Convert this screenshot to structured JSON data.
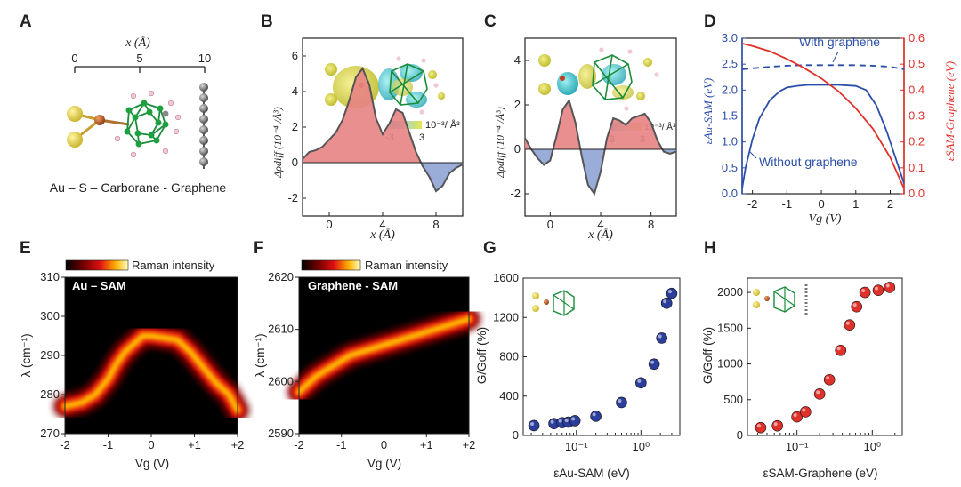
{
  "panels": {
    "A": {
      "label": "A",
      "axis_title": "x (Å)",
      "ticks": [
        "0",
        "5",
        "10"
      ],
      "caption": "Au – S – Carborane - Graphene"
    },
    "B": {
      "label": "B",
      "ylabel": "Δρdiff (10⁻⁴ /Å³)",
      "xlabel": "x (Å)",
      "colorbar": {
        "min": "-3",
        "max": "3",
        "unit": "10⁻³/ Å³"
      }
    },
    "C": {
      "label": "C",
      "ylabel": "Δρdiff (10⁻⁴ /Å³)",
      "xlabel": "x (Å)",
      "colorbar": {
        "min": "-3",
        "max": "3",
        "unit": "10⁻³/ Å³"
      }
    },
    "D": {
      "label": "D",
      "xlabel": "Vg (V)",
      "ylabel_left": "εAu-SAM (eV)",
      "ylabel_right": "εSAM-Graphene (eV)",
      "annot_with": "With graphene",
      "annot_without": "Without graphene"
    },
    "E": {
      "label": "E",
      "colorbar_label": "Raman intensity",
      "title": "Au – SAM",
      "ylabel": "λ (cm⁻¹)",
      "xlabel": "Vg (V)"
    },
    "F": {
      "label": "F",
      "colorbar_label": "Raman intensity",
      "title": "Graphene - SAM",
      "ylabel": "λ (cm⁻¹)",
      "xlabel": "Vg (V)"
    },
    "G": {
      "label": "G",
      "ylabel": "G/Goff (%)",
      "xlabel": "εAu-SAM (eV)"
    },
    "H": {
      "label": "H",
      "ylabel": "G/Goff (%)",
      "xlabel": "εSAM-Graphene (eV)"
    }
  },
  "chart_data": [
    {
      "id": "B",
      "type": "area",
      "x": [
        -2,
        -1.5,
        -1,
        -0.5,
        0,
        0.5,
        1,
        1.5,
        2,
        2.5,
        3,
        3.5,
        4,
        4.5,
        5,
        5.5,
        6,
        6.5,
        7,
        7.5,
        8,
        8.5,
        9,
        9.5,
        10
      ],
      "y": [
        0.2,
        0.6,
        0.7,
        0.9,
        1.3,
        1.7,
        2.4,
        3.5,
        4.8,
        5.3,
        4.4,
        2.5,
        1.6,
        2.2,
        3.0,
        2.8,
        1.7,
        0.6,
        -0.2,
        -0.8,
        -1.6,
        -1.3,
        -0.6,
        -0.3,
        -0.1
      ],
      "xlim": [
        -2,
        10
      ],
      "ylim": [
        -3,
        7
      ],
      "xticks": [
        0,
        4,
        8
      ],
      "yticks": [
        -2,
        0,
        2,
        4,
        6
      ],
      "pos_color": "#e88383",
      "neg_color": "#8fa3d4"
    },
    {
      "id": "C",
      "type": "area",
      "x": [
        -2,
        -1.5,
        -1,
        -0.5,
        0,
        0.5,
        1,
        1.5,
        2,
        2.5,
        3,
        3.5,
        4,
        4.5,
        5,
        5.5,
        6,
        6.5,
        7,
        7.5,
        8,
        8.5,
        9,
        9.5,
        10
      ],
      "y": [
        0.5,
        0.0,
        -0.4,
        -0.7,
        -0.5,
        0.6,
        1.8,
        2.2,
        1.2,
        -0.3,
        -1.6,
        -2.0,
        -1.0,
        0.5,
        1.4,
        1.3,
        1.1,
        1.4,
        1.5,
        1.6,
        1.2,
        0.4,
        -0.1,
        -0.2,
        -0.1
      ],
      "xlim": [
        -2,
        10
      ],
      "ylim": [
        -3,
        5
      ],
      "xticks": [
        0,
        4,
        8
      ],
      "yticks": [
        -2,
        0,
        2,
        4
      ],
      "pos_color": "#e88383",
      "neg_color": "#8fa3d4"
    },
    {
      "id": "D",
      "type": "line",
      "xlim": [
        -2.3,
        2.4
      ],
      "ylim_left": [
        0,
        3.0
      ],
      "ylim_right": [
        0,
        0.6
      ],
      "xticks": [
        -2,
        -1,
        0,
        1,
        2
      ],
      "yticks_left": [
        0,
        0.5,
        1.0,
        1.5,
        2.0,
        2.5,
        3.0
      ],
      "yticks_right": [
        0,
        0.1,
        0.2,
        0.3,
        0.4,
        0.5,
        0.6
      ],
      "series": [
        {
          "name": "With graphene",
          "axis": "left",
          "style": "dashed",
          "color": "#2b4ea8",
          "x": [
            -2.3,
            -2.0,
            -1.5,
            -1.0,
            -0.5,
            0,
            0.5,
            1.0,
            1.5,
            2.0,
            2.4
          ],
          "y": [
            2.4,
            2.42,
            2.45,
            2.47,
            2.48,
            2.48,
            2.48,
            2.48,
            2.47,
            2.45,
            2.4
          ]
        },
        {
          "name": "Without graphene",
          "axis": "left",
          "style": "solid",
          "color": "#2b4ea8",
          "x": [
            -2.3,
            -2.2,
            -2.0,
            -1.8,
            -1.5,
            -1.2,
            -1.0,
            -0.7,
            -0.4,
            0,
            0.5,
            1.0,
            1.3,
            1.6,
            1.9,
            2.2,
            2.4
          ],
          "y": [
            0.1,
            0.5,
            1.05,
            1.45,
            1.8,
            1.98,
            2.05,
            2.08,
            2.1,
            2.1,
            2.1,
            2.08,
            2.0,
            1.7,
            1.2,
            0.6,
            0.2
          ]
        },
        {
          "name": "SAM-Graphene",
          "axis": "right",
          "style": "solid",
          "color": "#e0302a",
          "x": [
            -2.3,
            -2.0,
            -1.5,
            -1.0,
            -0.5,
            0,
            0.5,
            1.0,
            1.5,
            2.0,
            2.4
          ],
          "y": [
            0.58,
            0.57,
            0.55,
            0.52,
            0.485,
            0.445,
            0.395,
            0.33,
            0.25,
            0.14,
            0.02
          ]
        }
      ]
    },
    {
      "id": "E",
      "type": "heatmap",
      "xlim": [
        -2,
        2
      ],
      "ylim": [
        270,
        310
      ],
      "xticks": [
        "-2",
        "-1",
        "0",
        "+1",
        "+2"
      ],
      "yticks": [
        270,
        280,
        290,
        300,
        310
      ],
      "ridge_x": [
        -2,
        -1.6,
        -1.3,
        -1.0,
        -0.8,
        -0.6,
        -0.4,
        -0.2,
        0,
        0.3,
        0.6,
        0.9,
        1.2,
        1.5,
        1.8,
        2.0
      ],
      "ridge_y": [
        277,
        278,
        280,
        284,
        288,
        291,
        293,
        295,
        295,
        294.5,
        294,
        291,
        287,
        283,
        280,
        276
      ]
    },
    {
      "id": "F",
      "type": "heatmap",
      "xlim": [
        -2,
        2
      ],
      "ylim": [
        2590,
        2620
      ],
      "xticks": [
        "-2",
        "-1",
        "0",
        "+1",
        "+2"
      ],
      "yticks": [
        2590,
        2600,
        2610,
        2620
      ],
      "ridge_x": [
        -2,
        -1.6,
        -1.2,
        -0.8,
        -0.4,
        0,
        0.4,
        0.8,
        1.2,
        1.6,
        2.0
      ],
      "ridge_y": [
        2598,
        2601,
        2603,
        2605,
        2606,
        2607,
        2608,
        2609,
        2610,
        2611,
        2612
      ]
    },
    {
      "id": "G",
      "type": "scatter",
      "xscale": "log",
      "xlim": [
        0.015,
        4
      ],
      "ylim": [
        0,
        1600
      ],
      "xticks": [
        0.1,
        1
      ],
      "xticklabels": [
        "10⁻¹",
        "10⁰"
      ],
      "yticks": [
        0,
        400,
        800,
        1200,
        1600
      ],
      "color": "#2b3e9c",
      "x": [
        0.022,
        0.045,
        0.06,
        0.075,
        0.095,
        0.2,
        0.5,
        1.0,
        1.6,
        2.1,
        2.5,
        3.0
      ],
      "y": [
        100,
        120,
        130,
        135,
        150,
        195,
        335,
        535,
        725,
        990,
        1345,
        1445
      ]
    },
    {
      "id": "H",
      "type": "scatter",
      "xscale": "log",
      "xlim": [
        0.022,
        2.5
      ],
      "ylim": [
        0,
        2200
      ],
      "xticks": [
        0.1,
        1
      ],
      "xticklabels": [
        "10⁻¹",
        "10⁰"
      ],
      "yticks": [
        0,
        500,
        1000,
        1500,
        2000
      ],
      "color": "#e0302a",
      "x": [
        0.033,
        0.055,
        0.1,
        0.13,
        0.2,
        0.27,
        0.38,
        0.5,
        0.62,
        0.8,
        1.2,
        1.7
      ],
      "y": [
        110,
        135,
        260,
        330,
        580,
        780,
        1190,
        1545,
        1800,
        2000,
        2030,
        2070
      ]
    }
  ]
}
